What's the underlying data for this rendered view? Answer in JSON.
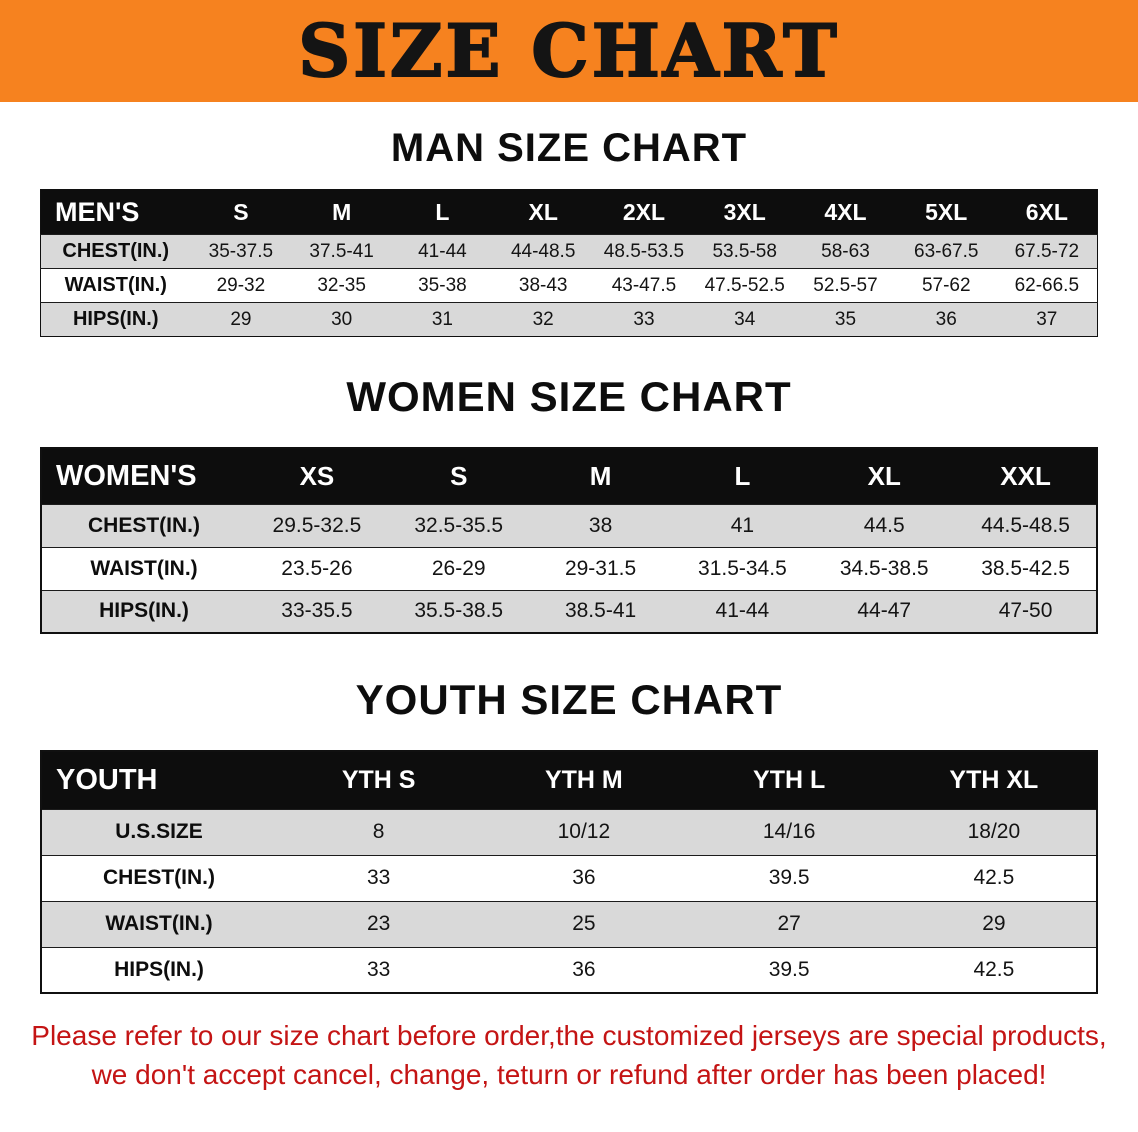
{
  "banner": {
    "title": "SIZE CHART"
  },
  "colors": {
    "banner_bg": "#f6821f",
    "banner_text": "#141414",
    "table_header_bg": "#0d0d0d",
    "table_header_text": "#ffffff",
    "row_stripe": "#d9d9d9",
    "note_text": "#c41414"
  },
  "sections": [
    {
      "heading": "MAN SIZE CHART",
      "corner_label": "MEN'S",
      "columns": [
        "S",
        "M",
        "L",
        "XL",
        "2XL",
        "3XL",
        "4XL",
        "5XL",
        "6XL"
      ],
      "rows": [
        {
          "label": "CHEST(IN.)",
          "values": [
            "35-37.5",
            "37.5-41",
            "41-44",
            "44-48.5",
            "48.5-53.5",
            "53.5-58",
            "58-63",
            "63-67.5",
            "67.5-72"
          ]
        },
        {
          "label": "WAIST(IN.)",
          "values": [
            "29-32",
            "32-35",
            "35-38",
            "38-43",
            "43-47.5",
            "47.5-52.5",
            "52.5-57",
            "57-62",
            "62-66.5"
          ]
        },
        {
          "label": "HIPS(IN.)",
          "values": [
            "29",
            "30",
            "31",
            "32",
            "33",
            "34",
            "35",
            "36",
            "37"
          ]
        }
      ]
    },
    {
      "heading": "WOMEN SIZE CHART",
      "corner_label": "WOMEN'S",
      "columns": [
        "XS",
        "S",
        "M",
        "L",
        "XL",
        "XXL"
      ],
      "rows": [
        {
          "label": "CHEST(IN.)",
          "values": [
            "29.5-32.5",
            "32.5-35.5",
            "38",
            "41",
            "44.5",
            "44.5-48.5"
          ]
        },
        {
          "label": "WAIST(IN.)",
          "values": [
            "23.5-26",
            "26-29",
            "29-31.5",
            "31.5-34.5",
            "34.5-38.5",
            "38.5-42.5"
          ]
        },
        {
          "label": "HIPS(IN.)",
          "values": [
            "33-35.5",
            "35.5-38.5",
            "38.5-41",
            "41-44",
            "44-47",
            "47-50"
          ]
        }
      ]
    },
    {
      "heading": "YOUTH SIZE CHART",
      "corner_label": "YOUTH",
      "columns": [
        "YTH S",
        "YTH M",
        "YTH L",
        "YTH XL"
      ],
      "rows": [
        {
          "label": "U.S.SIZE",
          "values": [
            "8",
            "10/12",
            "14/16",
            "18/20"
          ]
        },
        {
          "label": "CHEST(IN.)",
          "values": [
            "33",
            "36",
            "39.5",
            "42.5"
          ]
        },
        {
          "label": "WAIST(IN.)",
          "values": [
            "23",
            "25",
            "27",
            "29"
          ]
        },
        {
          "label": "HIPS(IN.)",
          "values": [
            "33",
            "36",
            "39.5",
            "42.5"
          ]
        }
      ]
    }
  ],
  "note": {
    "line1": "Please refer to our size chart before order,the customized jerseys are special products,",
    "line2": "we don't accept cancel, change, teturn or refund after order has been placed!"
  }
}
